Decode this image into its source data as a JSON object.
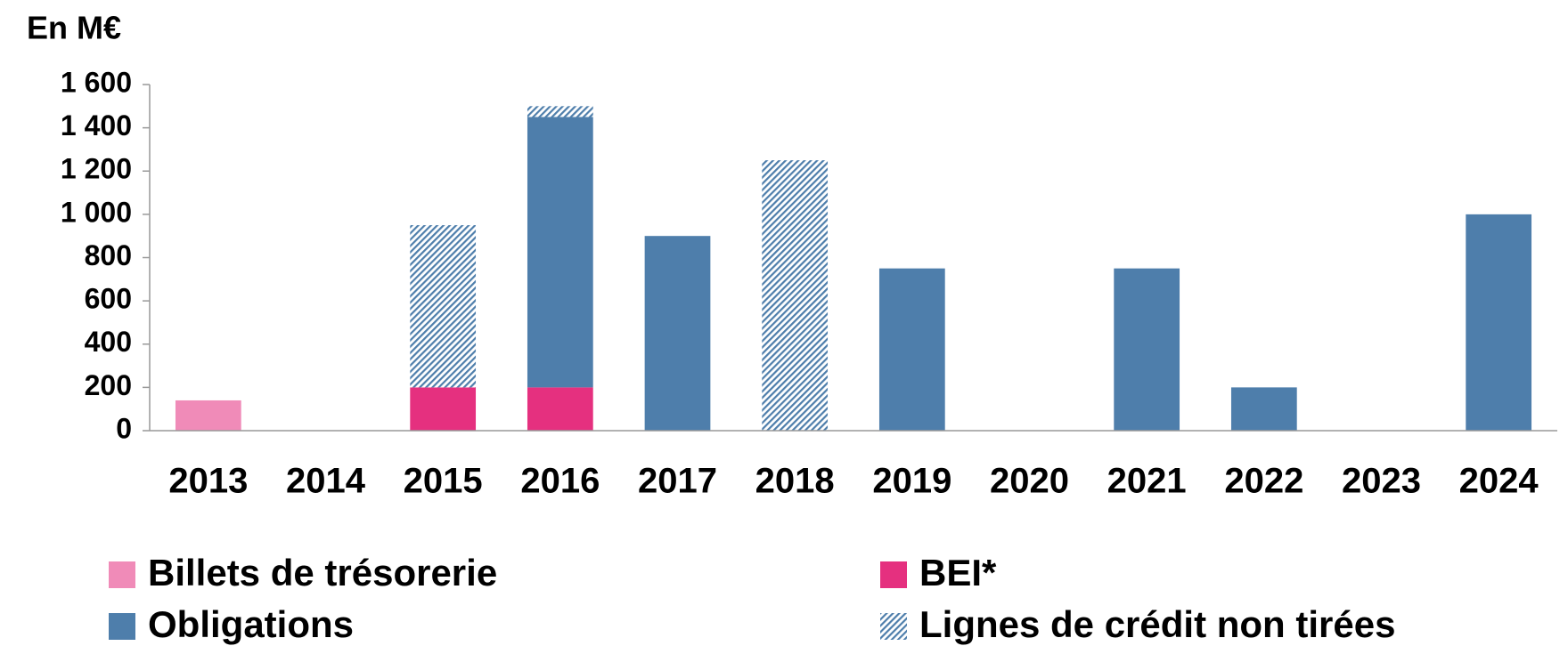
{
  "chart_data": {
    "type": "stacked_bar",
    "title": "En M€",
    "categories": [
      "2013",
      "2014",
      "2015",
      "2016",
      "2017",
      "2018",
      "2019",
      "2020",
      "2021",
      "2022",
      "2023",
      "2024"
    ],
    "series": [
      {
        "name": "Billets de trésorerie",
        "color": "#f08bb8",
        "values": [
          140,
          0,
          0,
          0,
          0,
          0,
          0,
          0,
          0,
          0,
          0,
          0
        ]
      },
      {
        "name": "BEI*",
        "color": "#e5307f",
        "values": [
          0,
          0,
          200,
          200,
          0,
          0,
          0,
          0,
          0,
          0,
          0,
          0
        ]
      },
      {
        "name": "Obligations",
        "color": "#4e7eab",
        "values": [
          0,
          0,
          0,
          1250,
          900,
          0,
          750,
          0,
          750,
          200,
          0,
          1000
        ]
      },
      {
        "name": "Lignes de crédit non tirées",
        "color": "#4e7eab",
        "hatch": true,
        "values": [
          0,
          0,
          750,
          50,
          0,
          1250,
          0,
          0,
          0,
          0,
          0,
          0
        ]
      }
    ],
    "ylim": [
      0,
      1600
    ],
    "yticks": [
      0,
      200,
      400,
      600,
      800,
      {
        "value": 1000,
        "label": "1 000"
      },
      {
        "value": 1200,
        "label": "1 200"
      },
      {
        "value": 1400,
        "label": "1 400"
      },
      {
        "value": 1600,
        "label": "1 600"
      }
    ]
  }
}
